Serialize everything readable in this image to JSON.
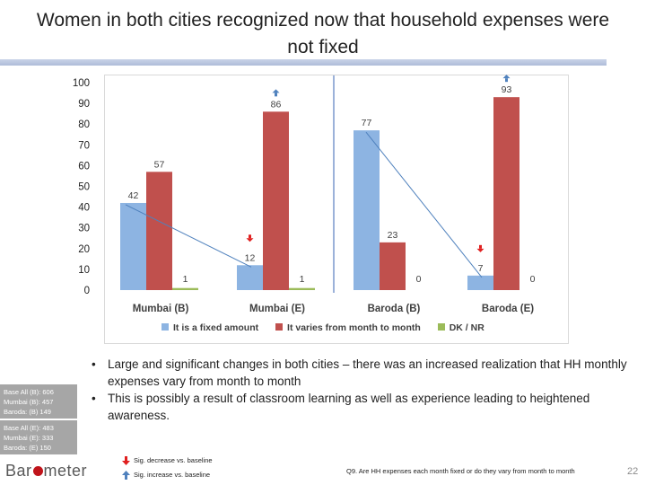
{
  "title": "Women in both cities recognized now that household expenses were not fixed",
  "chart_data": {
    "type": "bar",
    "categories": [
      "Mumbai (B)",
      "Mumbai (E)",
      "Baroda (B)",
      "Baroda (E)"
    ],
    "series": [
      {
        "name": "It is a fixed amount",
        "values": [
          42,
          12,
          77,
          7
        ],
        "color": "#8db4e2"
      },
      {
        "name": "It varies from month to month",
        "values": [
          57,
          86,
          23,
          93
        ],
        "color": "#c0504d"
      },
      {
        "name": "DK / NR",
        "values": [
          1,
          1,
          0,
          0
        ],
        "color": "#9bbb59"
      }
    ],
    "ylim": [
      0,
      100
    ],
    "yticks": [
      "0",
      "10",
      "20",
      "30",
      "40",
      "50",
      "60",
      "70",
      "80",
      "90",
      "100"
    ],
    "legend_position": "bottom",
    "annotations": {
      "sig_decrease": [
        "Mumbai (E)",
        "Baroda (E)"
      ],
      "sig_increase": [
        "Mumbai (E)",
        "Baroda (E)"
      ]
    }
  },
  "bullets": [
    "Large and significant changes in both cities – there was an increased realization that HH monthly expenses vary from month to month",
    "This is possibly a result of classroom learning as well as experience leading to heightened awareness."
  ],
  "bullet_char": "•",
  "base_b": [
    "Base All (B): 606",
    "Mumbai (B): 457",
    "Baroda: (B) 149"
  ],
  "base_e": [
    "Base All (E): 483",
    "Mumbai (E): 333",
    "Baroda: (E) 150"
  ],
  "logo": {
    "part1": "Bar",
    "part2": "meter"
  },
  "sig_decrease": "Sig. decrease vs. baseline",
  "sig_increase": "Sig. increase vs. baseline",
  "footnote": "Q9. Are HH expenses each month fixed or do they vary from month to month",
  "page_number": "22",
  "colors": {
    "blue": "#8db4e2",
    "red": "#c0504d",
    "green": "#9bbb59",
    "arrow_up": "#4f81bd",
    "arrow_down": "#e02020"
  }
}
